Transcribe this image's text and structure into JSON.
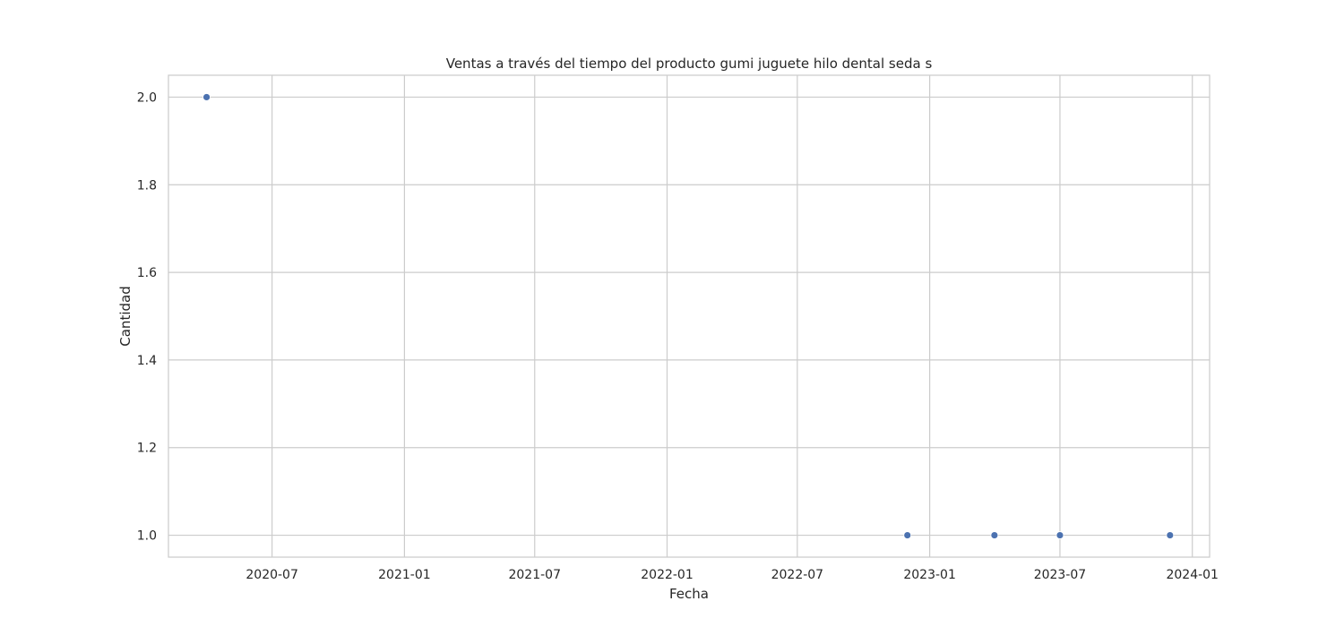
{
  "chart_data": {
    "type": "scatter",
    "title": "Ventas a través del tiempo del producto gumi juguete hilo dental seda  s",
    "xlabel": "Fecha",
    "ylabel": "Cantidad",
    "x_type": "date",
    "xlim": [
      "2020-02-08",
      "2024-01-25"
    ],
    "ylim": [
      0.95,
      2.05
    ],
    "x_ticks": [
      "2020-07-01",
      "2021-01-01",
      "2021-07-01",
      "2022-01-01",
      "2022-07-01",
      "2023-01-01",
      "2023-07-01",
      "2024-01-01"
    ],
    "x_tick_labels": [
      "2020-07",
      "2021-01",
      "2021-07",
      "2022-01",
      "2022-07",
      "2023-01",
      "2023-07",
      "2024-01"
    ],
    "y_ticks": [
      1.0,
      1.2,
      1.4,
      1.6,
      1.8,
      2.0
    ],
    "y_tick_labels": [
      "1.0",
      "1.2",
      "1.4",
      "1.6",
      "1.8",
      "2.0"
    ],
    "grid": true,
    "marker_color": "#4c72b0",
    "grid_color": "#cccccc",
    "series": [
      {
        "points": [
          {
            "x": "2020-04-01",
            "y": 2
          },
          {
            "x": "2022-12-01",
            "y": 1
          },
          {
            "x": "2023-04-01",
            "y": 1
          },
          {
            "x": "2023-07-01",
            "y": 1
          },
          {
            "x": "2023-12-01",
            "y": 1
          }
        ]
      }
    ]
  }
}
